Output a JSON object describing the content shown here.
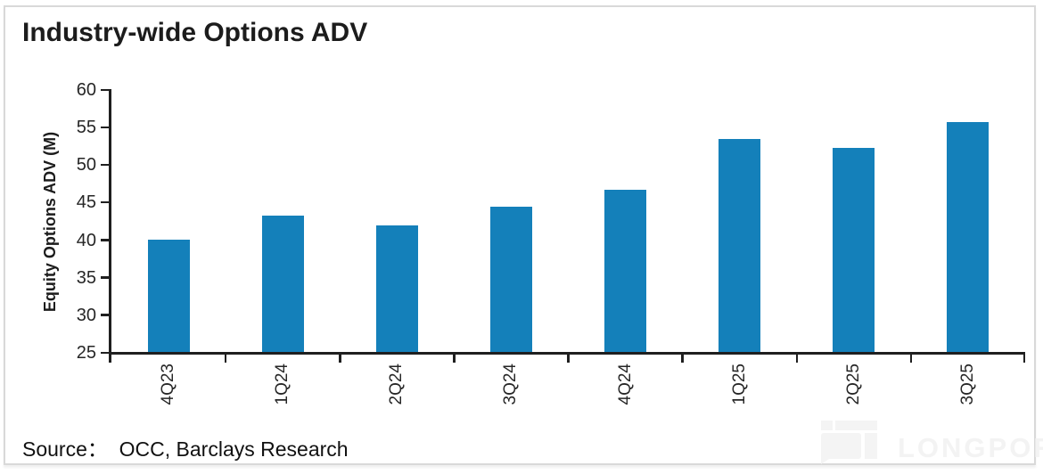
{
  "window": {
    "bg": "#ffffff",
    "card_border": "#d9d9d9"
  },
  "header": {
    "title": "Industry-wide Options ADV"
  },
  "footer": {
    "source": "Source：  OCC, Barclays Research"
  },
  "watermark": {
    "brand": "LONGPORT",
    "color": "#f3f3f3"
  },
  "chart_data": {
    "type": "bar",
    "title": "Industry-wide Options ADV",
    "categories": [
      "4Q23",
      "1Q24",
      "2Q24",
      "3Q24",
      "4Q24",
      "1Q25",
      "2Q25",
      "3Q25"
    ],
    "values": [
      40.0,
      43.1,
      41.9,
      44.3,
      46.6,
      53.4,
      52.2,
      55.6
    ],
    "xlabel": "",
    "ylabel": "Equity Options ADV (M)",
    "ylim": [
      25,
      60
    ],
    "yticks": [
      25,
      30,
      35,
      40,
      45,
      50,
      55,
      60
    ],
    "bar_color": "#1480ba",
    "axis_color": "#1f1f1f",
    "grid": false,
    "legend": "none"
  }
}
